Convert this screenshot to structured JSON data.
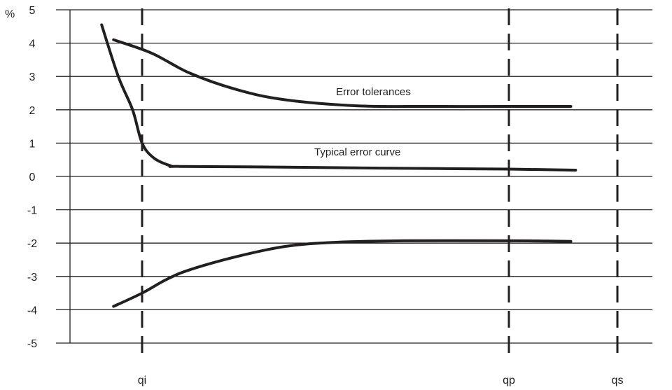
{
  "chart_data": {
    "type": "line",
    "title": "",
    "xlabel": "",
    "ylabel": "%",
    "ylim": [
      -5,
      5
    ],
    "y_ticks": [
      "5",
      "4",
      "3",
      "2",
      "1",
      "0",
      "-1",
      "-2",
      "-3",
      "-4",
      "-5"
    ],
    "grid": "horizontal",
    "x_markers": [
      {
        "label": "qi"
      },
      {
        "label": "qp"
      },
      {
        "label": "qs"
      }
    ],
    "annotations": [
      {
        "text": "Error tolerances"
      },
      {
        "text": "Typical error curve"
      }
    ],
    "series": [
      {
        "key": "upper_tolerance",
        "points": [
          [
            -0.6,
            4.1
          ],
          [
            0.2,
            3.7
          ],
          [
            1.0,
            3.1
          ],
          [
            2.0,
            2.6
          ],
          [
            3.0,
            2.3
          ],
          [
            4.5,
            2.12
          ],
          [
            6.0,
            2.1
          ],
          [
            7.7,
            2.1
          ],
          [
            8.5,
            2.1
          ],
          [
            9.0,
            2.1
          ]
        ]
      },
      {
        "key": "typical_error",
        "points": [
          [
            -0.85,
            4.55
          ],
          [
            -0.5,
            3.0
          ],
          [
            -0.2,
            2.0
          ],
          [
            0.0,
            1.0
          ],
          [
            0.25,
            0.55
          ],
          [
            0.6,
            0.32
          ],
          [
            0.8,
            0.3
          ],
          [
            3.0,
            0.28
          ],
          [
            5.0,
            0.25
          ],
          [
            7.7,
            0.22
          ],
          [
            9.1,
            0.19
          ]
        ]
      },
      {
        "key": "lower_tolerance",
        "points": [
          [
            -0.6,
            -3.9
          ],
          [
            0.0,
            -3.5
          ],
          [
            0.5,
            -3.1
          ],
          [
            1.0,
            -2.8
          ],
          [
            2.0,
            -2.4
          ],
          [
            3.0,
            -2.1
          ],
          [
            4.0,
            -1.98
          ],
          [
            5.5,
            -1.93
          ],
          [
            7.7,
            -1.93
          ],
          [
            8.5,
            -1.94
          ],
          [
            9.0,
            -1.95
          ]
        ]
      }
    ]
  }
}
